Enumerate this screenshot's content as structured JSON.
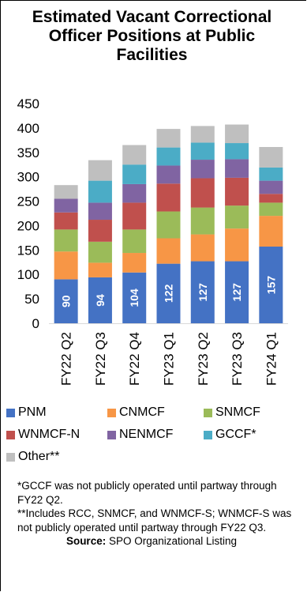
{
  "chart_data": {
    "type": "bar",
    "stacked": true,
    "title": "Estimated Vacant Correctional Officer Positions at Public Facilities",
    "categories": [
      "FY22 Q2",
      "FY22 Q3",
      "FY22 Q4",
      "FY23 Q1",
      "FY23 Q2",
      "FY23 Q3",
      "FY24 Q1"
    ],
    "ylim": [
      0,
      450
    ],
    "yticks": [
      0,
      50,
      100,
      150,
      200,
      250,
      300,
      350,
      400,
      450
    ],
    "grid": false,
    "legend_position": "bottom",
    "series": [
      {
        "name": "PNM",
        "color": "#4472C4",
        "values": [
          90,
          94,
          104,
          122,
          127,
          127,
          157
        ],
        "show_labels": true
      },
      {
        "name": "CNMCF",
        "color": "#F79646",
        "values": [
          57,
          30,
          40,
          52,
          55,
          67,
          63
        ]
      },
      {
        "name": "SNMCF",
        "color": "#9BBB59",
        "values": [
          45,
          43,
          48,
          55,
          55,
          47,
          27
        ]
      },
      {
        "name": "WNMCF-N",
        "color": "#C0504D",
        "values": [
          35,
          45,
          55,
          57,
          60,
          57,
          18
        ]
      },
      {
        "name": "NENMCF",
        "color": "#8064A2",
        "values": [
          28,
          35,
          38,
          37,
          38,
          38,
          27
        ]
      },
      {
        "name": "GCCF*",
        "color": "#4BACC6",
        "values": [
          0,
          45,
          40,
          37,
          35,
          33,
          27
        ]
      },
      {
        "name": "Other**",
        "color": "#BFBFBF",
        "values": [
          28,
          42,
          40,
          38,
          34,
          38,
          42
        ]
      }
    ]
  },
  "notes": {
    "note1": "*GCCF was not publicly operated until partway through FY22 Q2.",
    "note2": "**Includes RCC, SNMCF, and WNMCF-S; WNMCF-S was not publicly operated until partway through FY22 Q3.",
    "source_label": "Source:",
    "source_text": " SPO Organizational Listing"
  }
}
